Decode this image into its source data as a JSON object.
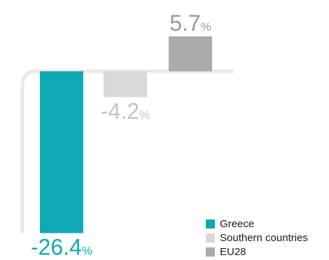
{
  "chart_data": {
    "type": "bar",
    "categories": [
      "Greece",
      "Southern countries",
      "EU28"
    ],
    "series": [
      {
        "name": "Greece",
        "value": -26.4,
        "label": "-26.4",
        "color": "#0fa9b7",
        "label_color": "#0fa9b7"
      },
      {
        "name": "Southern countries",
        "value": -4.2,
        "label": "-4.2",
        "color": "#d9d9d9",
        "label_color": "#c4c4c4"
      },
      {
        "name": "EU28",
        "value": 5.7,
        "label": "5.7",
        "color": "#ababab",
        "label_color": "#9a9a9a"
      }
    ],
    "unit": "%",
    "legend_position": "bottom-right",
    "grid": false
  }
}
